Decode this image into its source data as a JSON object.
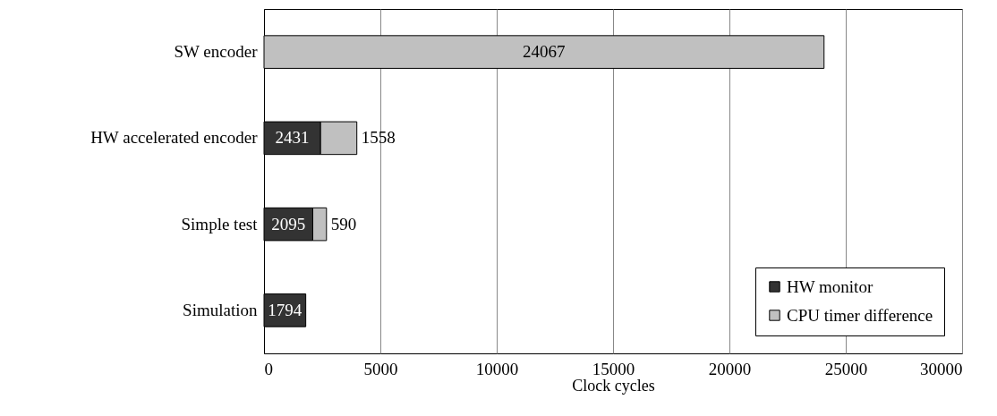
{
  "chart_data": {
    "type": "bar",
    "orientation": "horizontal",
    "stacked": true,
    "xlabel": "Clock cycles",
    "categories": [
      "SW encoder",
      "HW accelerated encoder",
      "Simple test",
      "Simulation"
    ],
    "series": [
      {
        "name": "HW monitor",
        "color": "#333333",
        "values": [
          null,
          2431,
          2095,
          1794
        ]
      },
      {
        "name": "CPU timer difference",
        "color": "#c0c0c0",
        "values": [
          24067,
          1558,
          590,
          null
        ]
      }
    ],
    "xlim": [
      0,
      30000
    ],
    "xticks": [
      0,
      5000,
      10000,
      15000,
      20000,
      25000,
      30000
    ],
    "grid": "x",
    "legend": "bottom right",
    "data_labels": true
  }
}
